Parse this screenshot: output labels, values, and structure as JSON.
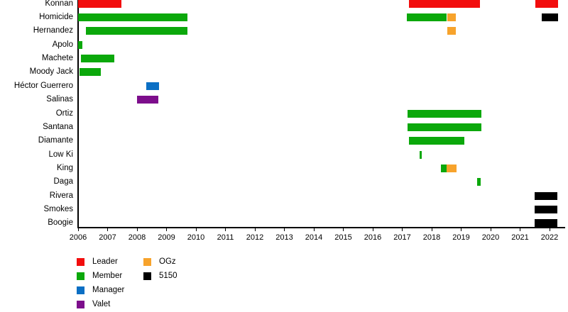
{
  "chart_data": {
    "type": "timeline",
    "title": "",
    "x_axis": {
      "min": 2006,
      "max": 2022.5,
      "ticks": [
        "2006",
        "2007",
        "2008",
        "2009",
        "2010",
        "2011",
        "2012",
        "2013",
        "2014",
        "2015",
        "2016",
        "2017",
        "2018",
        "2019",
        "2020",
        "2021",
        "2022"
      ]
    },
    "legend_position": "bottom-left",
    "grid": false,
    "legend": [
      {
        "label": "Leader",
        "color": "#f20d0d"
      },
      {
        "label": "Member",
        "color": "#0ba80b"
      },
      {
        "label": "Manager",
        "color": "#0b6fc4"
      },
      {
        "label": "Valet",
        "color": "#7d0e8c"
      },
      {
        "label": "OGz",
        "color": "#f7a32c"
      },
      {
        "label": "5150",
        "color": "#000000"
      }
    ],
    "rows": [
      {
        "label": "Konnan",
        "segments": [
          {
            "role": "Leader",
            "start": 2006.0,
            "end": 2007.47
          },
          {
            "role": "Leader",
            "start": 2017.23,
            "end": 2019.64
          },
          {
            "role": "Leader",
            "start": 2021.52,
            "end": 2022.29
          }
        ]
      },
      {
        "label": "Homicide",
        "segments": [
          {
            "role": "Member",
            "start": 2006.0,
            "end": 2009.71
          },
          {
            "role": "Member",
            "start": 2017.16,
            "end": 2018.51
          },
          {
            "role": "OGz",
            "start": 2018.53,
            "end": 2018.82
          },
          {
            "role": "5150",
            "start": 2021.73,
            "end": 2022.29
          }
        ]
      },
      {
        "label": "Hernandez",
        "segments": [
          {
            "role": "Member",
            "start": 2006.27,
            "end": 2009.71
          },
          {
            "role": "OGz",
            "start": 2018.53,
            "end": 2018.82
          }
        ]
      },
      {
        "label": "Apolo",
        "segments": [
          {
            "role": "Member",
            "start": 2006.0,
            "end": 2006.15
          }
        ]
      },
      {
        "label": "Machete",
        "segments": [
          {
            "role": "Member",
            "start": 2006.1,
            "end": 2007.23
          }
        ]
      },
      {
        "label": "Moody Jack",
        "segments": [
          {
            "role": "Member",
            "start": 2006.05,
            "end": 2006.77
          }
        ]
      },
      {
        "label": "Héctor Guerrero",
        "segments": [
          {
            "role": "Manager",
            "start": 2008.31,
            "end": 2008.75
          }
        ]
      },
      {
        "label": "Salinas",
        "segments": [
          {
            "role": "Valet",
            "start": 2008.0,
            "end": 2008.72
          }
        ]
      },
      {
        "label": "Ortiz",
        "segments": [
          {
            "role": "Member",
            "start": 2017.18,
            "end": 2019.69
          }
        ]
      },
      {
        "label": "Santana",
        "segments": [
          {
            "role": "Member",
            "start": 2017.18,
            "end": 2019.69
          }
        ]
      },
      {
        "label": "Diamante",
        "segments": [
          {
            "role": "Member",
            "start": 2017.23,
            "end": 2019.11
          }
        ]
      },
      {
        "label": "Low Ki",
        "segments": [
          {
            "role": "Member",
            "start": 2017.59,
            "end": 2017.67
          }
        ]
      },
      {
        "label": "King",
        "segments": [
          {
            "role": "Member",
            "start": 2018.31,
            "end": 2018.51
          },
          {
            "role": "OGz",
            "start": 2018.51,
            "end": 2018.84
          }
        ]
      },
      {
        "label": "Daga",
        "segments": [
          {
            "role": "Member",
            "start": 2019.54,
            "end": 2019.66
          }
        ]
      },
      {
        "label": "Rivera",
        "segments": [
          {
            "role": "5150",
            "start": 2021.49,
            "end": 2022.27
          }
        ]
      },
      {
        "label": "Smokes",
        "segments": [
          {
            "role": "5150",
            "start": 2021.49,
            "end": 2022.27
          }
        ]
      },
      {
        "label": "Boogie",
        "segments": [
          {
            "role": "5150",
            "start": 2021.49,
            "end": 2022.27
          }
        ]
      }
    ]
  }
}
